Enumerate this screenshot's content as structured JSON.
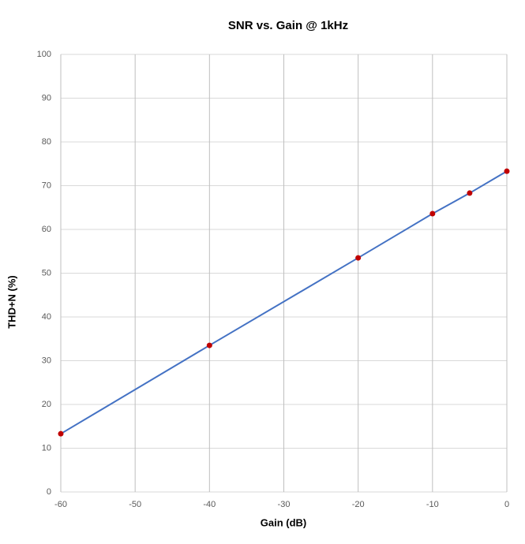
{
  "chart_data": {
    "type": "line",
    "title": "SNR vs. Gain @ 1kHz",
    "x_label": "Gain (dB)",
    "y_label": "THD+N  (%)",
    "x": [
      -60,
      -40,
      -20,
      -10,
      -5,
      0
    ],
    "series": [
      {
        "values": [
          13.3,
          33.5,
          53.5,
          63.6,
          68.3,
          73.3
        ],
        "color": "#4472c4",
        "marker_color": "#c00000"
      }
    ],
    "xlim": [
      -60,
      0
    ],
    "xticks": [
      -60,
      -50,
      -40,
      -30,
      -20,
      -10,
      0
    ],
    "ylim": [
      0,
      100
    ],
    "yticks": [
      0,
      10,
      20,
      30,
      40,
      50,
      60,
      70,
      80,
      90,
      100
    ],
    "grid": true
  }
}
